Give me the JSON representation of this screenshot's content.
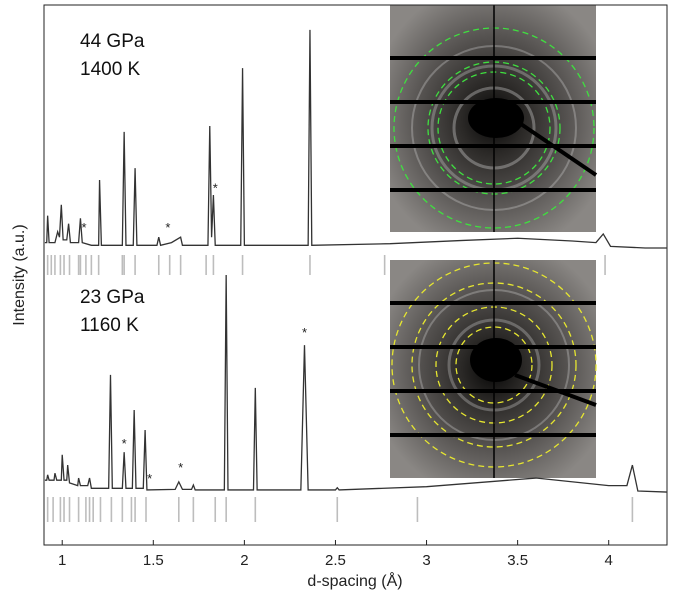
{
  "chart_data": {
    "type": "line",
    "x_label": "d-spacing (Å)",
    "y_label": "Intensity (a.u.)",
    "xlim": [
      0.9,
      4.32
    ],
    "xticks": [
      1,
      1.5,
      2,
      2.5,
      3,
      3.5,
      4
    ],
    "ylim": [
      0,
      100
    ],
    "color": "#333333",
    "series": [
      {
        "label": [
          "44 GPa",
          "1400 K"
        ],
        "x": [
          0.905,
          0.915,
          0.92,
          0.928,
          0.96,
          0.975,
          0.985,
          0.995,
          1.005,
          1.025,
          1.035,
          1.045,
          1.09,
          1.1,
          1.11,
          1.16,
          1.2,
          1.205,
          1.215,
          1.33,
          1.34,
          1.35,
          1.39,
          1.4,
          1.41,
          1.52,
          1.53,
          1.54,
          1.6,
          1.65,
          1.66,
          1.8,
          1.81,
          1.82,
          1.83,
          1.84,
          1.98,
          1.99,
          2.0,
          2.35,
          2.36,
          2.37,
          2.8,
          3.2,
          3.5,
          3.8,
          3.93,
          3.97,
          4.01,
          4.2,
          4.32
        ],
        "values": [
          56,
          56,
          61,
          56,
          56,
          58,
          57,
          63,
          56.5,
          56.5,
          59.5,
          56,
          56,
          60.5,
          56,
          55.5,
          55.5,
          67.6,
          55.5,
          55.5,
          76.5,
          55.5,
          55.5,
          69.8,
          55.5,
          55.5,
          57,
          55.5,
          56,
          57,
          55.5,
          55.5,
          77.6,
          57,
          64.8,
          55.5,
          55.5,
          88.3,
          55.5,
          55.5,
          95.4,
          55.5,
          55.8,
          56.4,
          56.8,
          56.3,
          56,
          57.6,
          55.3,
          55,
          55
        ],
        "reference_ticks": [
          0.92,
          0.94,
          0.96,
          0.99,
          1.01,
          1.04,
          1.09,
          1.1,
          1.13,
          1.16,
          1.2,
          1.33,
          1.34,
          1.4,
          1.53,
          1.59,
          1.65,
          1.79,
          1.83,
          1.99,
          2.36,
          2.77,
          3.98
        ]
      },
      {
        "label": [
          "23 GPa",
          "1160 K"
        ],
        "x": [
          0.905,
          0.915,
          0.92,
          0.928,
          0.955,
          0.96,
          0.97,
          0.995,
          1.0,
          1.01,
          1.025,
          1.03,
          1.04,
          1.085,
          1.09,
          1.1,
          1.14,
          1.15,
          1.16,
          1.255,
          1.265,
          1.275,
          1.33,
          1.34,
          1.35,
          1.385,
          1.395,
          1.405,
          1.445,
          1.455,
          1.465,
          1.62,
          1.64,
          1.66,
          1.71,
          1.72,
          1.73,
          1.89,
          1.9,
          1.91,
          2.05,
          2.06,
          2.07,
          2.31,
          2.33,
          2.35,
          2.5,
          2.51,
          2.52,
          3.0,
          3.6,
          4.0,
          4.1,
          4.13,
          4.16,
          4.32
        ],
        "values": [
          12,
          12,
          13,
          12,
          12,
          13.3,
          12,
          12,
          16.7,
          12,
          12,
          14.8,
          11.5,
          11,
          12.4,
          11,
          11,
          12.4,
          10.5,
          10.5,
          31.5,
          10.5,
          10.5,
          17.2,
          10.5,
          10.5,
          25,
          10.5,
          10.5,
          21.3,
          10.2,
          10.3,
          11.7,
          10.3,
          10.3,
          11.1,
          10.2,
          10.2,
          50,
          10.2,
          10.2,
          29.1,
          10.2,
          10.2,
          37,
          10.2,
          10.2,
          10.6,
          10.2,
          10.8,
          12.4,
          11,
          11,
          14.8,
          10,
          9.8
        ],
        "reference_ticks": [
          0.92,
          0.95,
          0.99,
          1.01,
          1.04,
          1.09,
          1.13,
          1.15,
          1.17,
          1.21,
          1.27,
          1.33,
          1.38,
          1.4,
          1.46,
          1.64,
          1.72,
          1.84,
          1.9,
          2.06,
          2.51,
          2.95,
          4.13
        ]
      }
    ],
    "annotations": [
      {
        "text": "*",
        "x": 1.12,
        "y": 57.5
      },
      {
        "text": "*",
        "x": 1.58,
        "y": 57.5
      },
      {
        "text": "*",
        "x": 1.84,
        "y": 64.8
      },
      {
        "text": "*",
        "x": 1.34,
        "y": 17.5
      },
      {
        "text": "*",
        "x": 1.48,
        "y": 11
      },
      {
        "text": "*",
        "x": 1.65,
        "y": 13
      },
      {
        "text": "*",
        "x": 2.33,
        "y": 38
      }
    ]
  }
}
